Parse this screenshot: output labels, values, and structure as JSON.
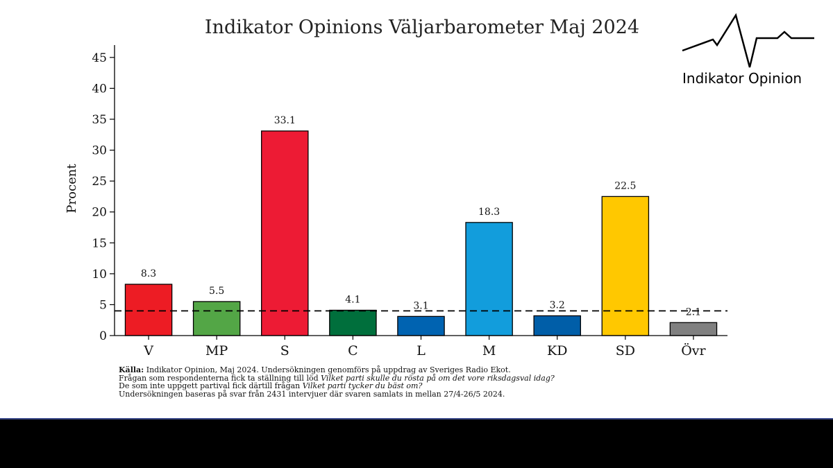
{
  "chart_data": {
    "type": "bar",
    "title": "Indikator Opinions Väljarbarometer Maj 2024",
    "ylabel": "Procent",
    "xlabel": "",
    "ylim": [
      0,
      47
    ],
    "yticks": [
      0,
      5,
      10,
      15,
      20,
      25,
      30,
      35,
      40,
      45
    ],
    "threshold": 4,
    "categories": [
      "V",
      "MP",
      "S",
      "C",
      "L",
      "M",
      "KD",
      "SD",
      "Övr"
    ],
    "values": [
      8.3,
      5.5,
      33.1,
      4.1,
      3.1,
      18.3,
      3.2,
      22.5,
      2.1
    ],
    "labels": [
      "8.3",
      "5.5",
      "33.1",
      "4.1",
      "3.1",
      "18.3",
      "3.2",
      "22.5",
      "2.1"
    ],
    "colors": [
      "#ed1c24",
      "#53a646",
      "#ed1b34",
      "#006f3c",
      "#0063b1",
      "#129ddc",
      "#005ea8",
      "#ffc800",
      "#808080"
    ],
    "grid": false,
    "legend": "none"
  },
  "logo": {
    "text": "Indikator Opinion"
  },
  "footnotes": {
    "source_label": "Källa:",
    "source_text": " Indikator Opinion, Maj 2024. Undersökningen genomförs på uppdrag av Sveriges Radio Ekot.",
    "line2_text": "Frågan som respondenterna fick ta ställning till löd ",
    "line2_question": "Vilket parti skulle du rösta på om det vore riksdagsval idag?",
    "line3_text": "De som inte uppgett partival fick därtill frågan  ",
    "line3_question": "Vilket parti tycker du bäst om?",
    "line4_text": "Undersökningen baseras på svar från 2431 intervjuer där svaren samlats in mellan 27/4-26/5 2024."
  }
}
